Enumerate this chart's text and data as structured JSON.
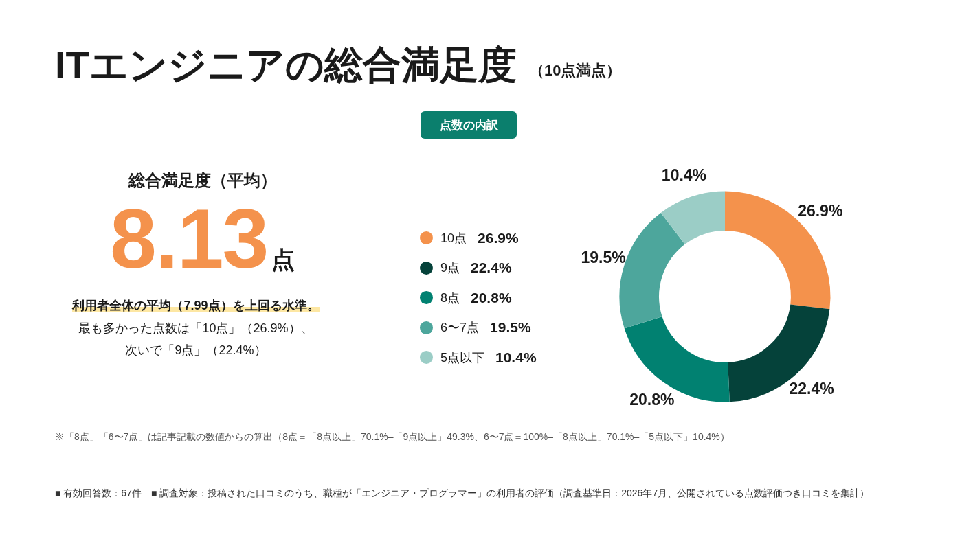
{
  "chart_data": {
    "type": "donut",
    "title": "ITエンジニアの総合満足度",
    "subtitle": "（10点満点）",
    "categories": [
      "10点",
      "9点",
      "8点",
      "6〜7点",
      "5点以下"
    ],
    "values": [
      26.9,
      22.4,
      20.8,
      19.5,
      10.4
    ],
    "value_labels": [
      "26.9%",
      "22.4%",
      "20.8%",
      "19.5%",
      "10.4%"
    ],
    "colors": [
      "#f4924c",
      "#05423a",
      "#018171",
      "#4da69c",
      "#9bcdc6"
    ],
    "legend": "left",
    "annotations": [
      "点数の内訳",
      "総合満足度（平均）",
      "8.13点",
      "利用者全体の平均（7.99点）を上回る水準。",
      "最も多かった点数は「10点」（26.9%）、",
      "次いで「9点」（22.4%）",
      "※「8点」「6〜7点」は記事記載の数値からの算出（8点＝「8点以上」70.1%–「9点以上」49.3%、6〜7点＝100%–「8点以上」70.1%–「5点以下」10.4%）",
      "■ 有効回答数：67件　■ 調査対象：投稿された口コミのうち、職種が「エンジニア・プログラマー」の利用者の評価（調査基準日：2026年7月、公開されている点数評価つき口コミを集計）"
    ]
  }
}
